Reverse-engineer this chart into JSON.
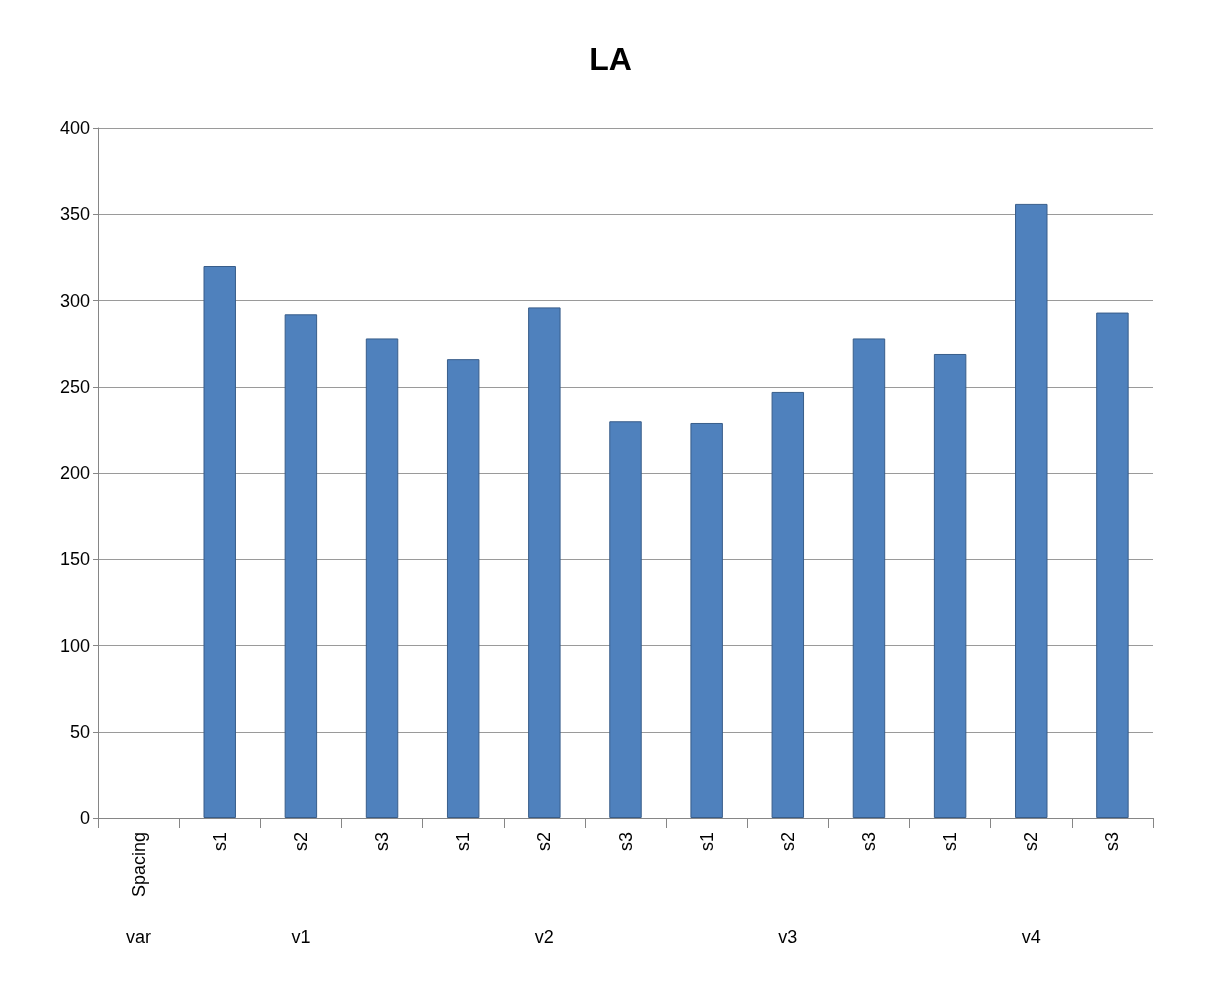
{
  "chart_data": {
    "type": "bar",
    "title": "LA",
    "categories": [
      "Spacing",
      "s1",
      "s2",
      "s3",
      "s1",
      "s2",
      "s3",
      "s1",
      "s2",
      "s3",
      "s1",
      "s2",
      "s3"
    ],
    "values": [
      null,
      320,
      292,
      278,
      266,
      296,
      230,
      229,
      247,
      278,
      269,
      356,
      293
    ],
    "color": "#4f81bd",
    "ylim": [
      0,
      400
    ],
    "yticks": [
      0,
      50,
      100,
      150,
      200,
      250,
      300,
      350,
      400
    ],
    "grid": "y",
    "annotations": [
      "var",
      "v1",
      "v2",
      "v3",
      "v4"
    ]
  }
}
